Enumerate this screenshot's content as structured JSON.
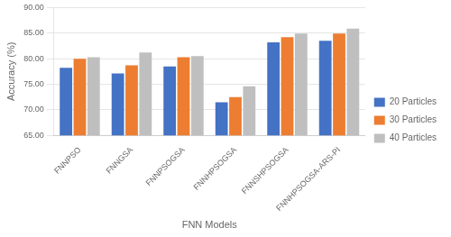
{
  "chart_data": {
    "type": "bar",
    "categories": [
      "FNNPSO",
      "FNNGSA",
      "FNNPSOGSA",
      "FNNHPSOGSA",
      "FNNSHPSOGSA",
      "FNNHPSOGSA-ARS-PI"
    ],
    "series": [
      {
        "name": "20 Particles",
        "color": "#4472C4",
        "values": [
          78.2,
          77.1,
          78.5,
          71.5,
          83.2,
          83.5
        ]
      },
      {
        "name": "30 Particles",
        "color": "#ED7D31",
        "values": [
          80.0,
          78.7,
          80.3,
          72.5,
          84.2,
          84.9
        ]
      },
      {
        "name": "40 Particles",
        "color": "#BFBFBF",
        "values": [
          80.3,
          81.2,
          80.5,
          74.6,
          84.9,
          85.9
        ]
      }
    ],
    "xlabel": "FNN Models",
    "ylabel": "Accuracy (%)",
    "ylim": [
      65.0,
      90.0
    ],
    "yticks": [
      {
        "value": 65,
        "label": "65.00"
      },
      {
        "value": 70,
        "label": "70.00"
      },
      {
        "value": 75,
        "label": "75.00"
      },
      {
        "value": 80,
        "label": "80.00"
      },
      {
        "value": 85,
        "label": "85.00"
      },
      {
        "value": 90,
        "label": "90.00"
      }
    ],
    "grid": true,
    "legend": "right"
  }
}
